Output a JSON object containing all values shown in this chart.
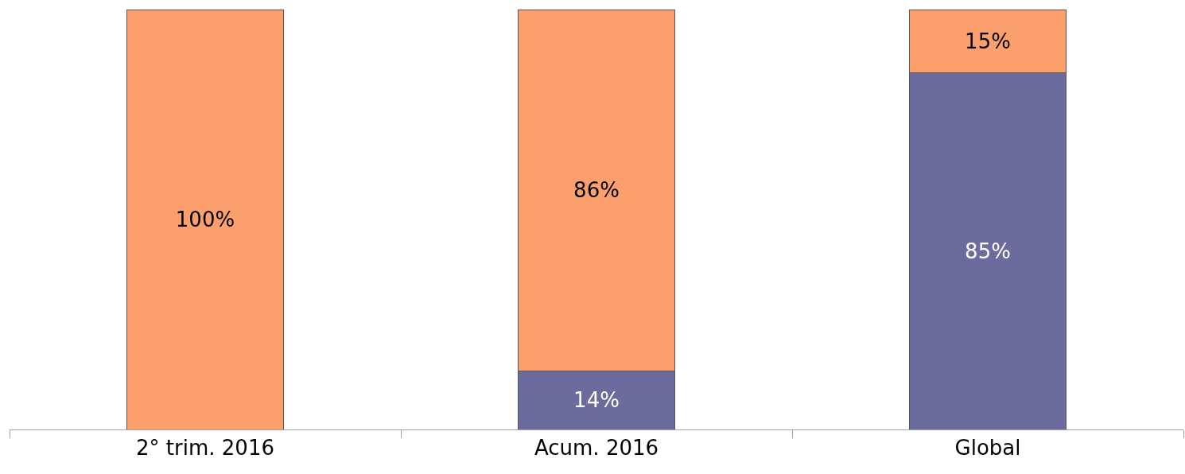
{
  "chart_data": {
    "type": "bar",
    "stacked": true,
    "categories": [
      "2° trim. 2016",
      "Acum. 2016",
      "Global"
    ],
    "ylim": [
      0,
      100
    ],
    "series": [
      {
        "color": "#6b6b9e",
        "values": [
          null,
          14,
          85
        ],
        "value_labels": [
          null,
          "14%",
          "85%"
        ]
      },
      {
        "color": "#fba06c",
        "values": [
          100,
          86,
          15
        ],
        "value_labels": [
          "100%",
          "86%",
          "15%"
        ]
      }
    ],
    "legend": false
  }
}
